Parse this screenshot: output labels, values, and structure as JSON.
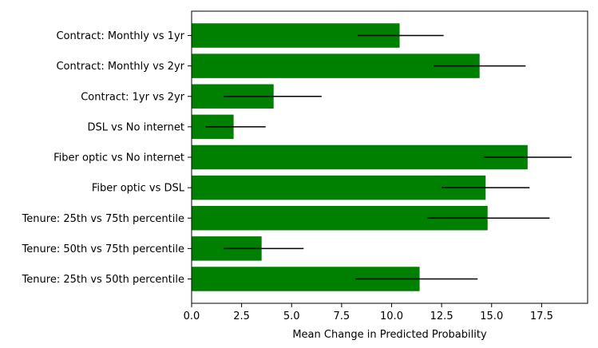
{
  "chart_data": {
    "type": "bar",
    "orientation": "horizontal",
    "title": "",
    "xlabel": "Mean Change in Predicted Probability",
    "ylabel": "",
    "xlim": [
      0,
      19.8
    ],
    "xticks": [
      0,
      2.5,
      5,
      7.5,
      10,
      12.5,
      15,
      17.5
    ],
    "xtick_labels": [
      "0.0",
      "2.5",
      "5.0",
      "7.5",
      "10.0",
      "12.5",
      "15.0",
      "17.5"
    ],
    "grid": false,
    "legend": "none",
    "bar_color": "#008000",
    "error_bar_color": "#000000",
    "categories": [
      "Contract: Monthly vs 1yr",
      "Contract: Monthly vs 2yr",
      "Contract: 1yr vs 2yr",
      "DSL vs No internet ",
      "Fiber optic vs No internet",
      "Fiber optic vs DSL",
      "Tenure: 25th vs 75th percentile",
      "Tenure: 50th vs 75th percentile",
      "Tenure: 25th vs 50th percentile"
    ],
    "values": [
      10.4,
      14.4,
      4.1,
      2.1,
      16.8,
      14.7,
      14.8,
      3.5,
      11.4
    ],
    "error_low": [
      8.3,
      12.1,
      1.6,
      0.7,
      14.6,
      12.5,
      11.8,
      1.6,
      8.2
    ],
    "error_high": [
      12.6,
      16.7,
      6.5,
      3.7,
      19.0,
      16.9,
      17.9,
      5.6,
      14.3
    ]
  }
}
